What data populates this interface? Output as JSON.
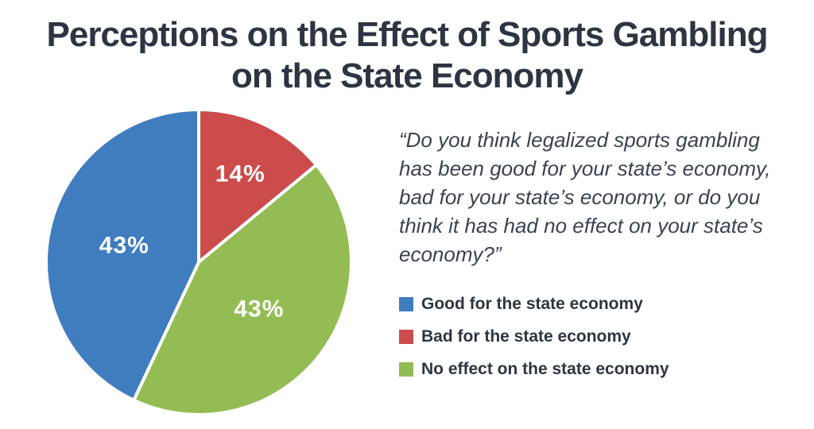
{
  "title_lines": [
    "Perceptions on the Effect of Sports Gambling",
    "on the State Economy"
  ],
  "question": "“Do you think legalized sports gambling has been good for your state’s economy, bad for your state’s economy, or do you think it has had no effect on your state’s economy?”",
  "chart_data": {
    "type": "pie",
    "title": "Perceptions on the Effect of Sports Gambling on the State Economy",
    "slices": [
      {
        "label": "Good for the state economy",
        "value": 43,
        "display": "43%",
        "color": "#3f7dbf"
      },
      {
        "label": "Bad for the state economy",
        "value": 14,
        "display": "14%",
        "color": "#cc4b4b"
      },
      {
        "label": "No effect on the state economy",
        "value": 43,
        "display": "43%",
        "color": "#93bd54"
      }
    ],
    "legend_position": "right"
  }
}
